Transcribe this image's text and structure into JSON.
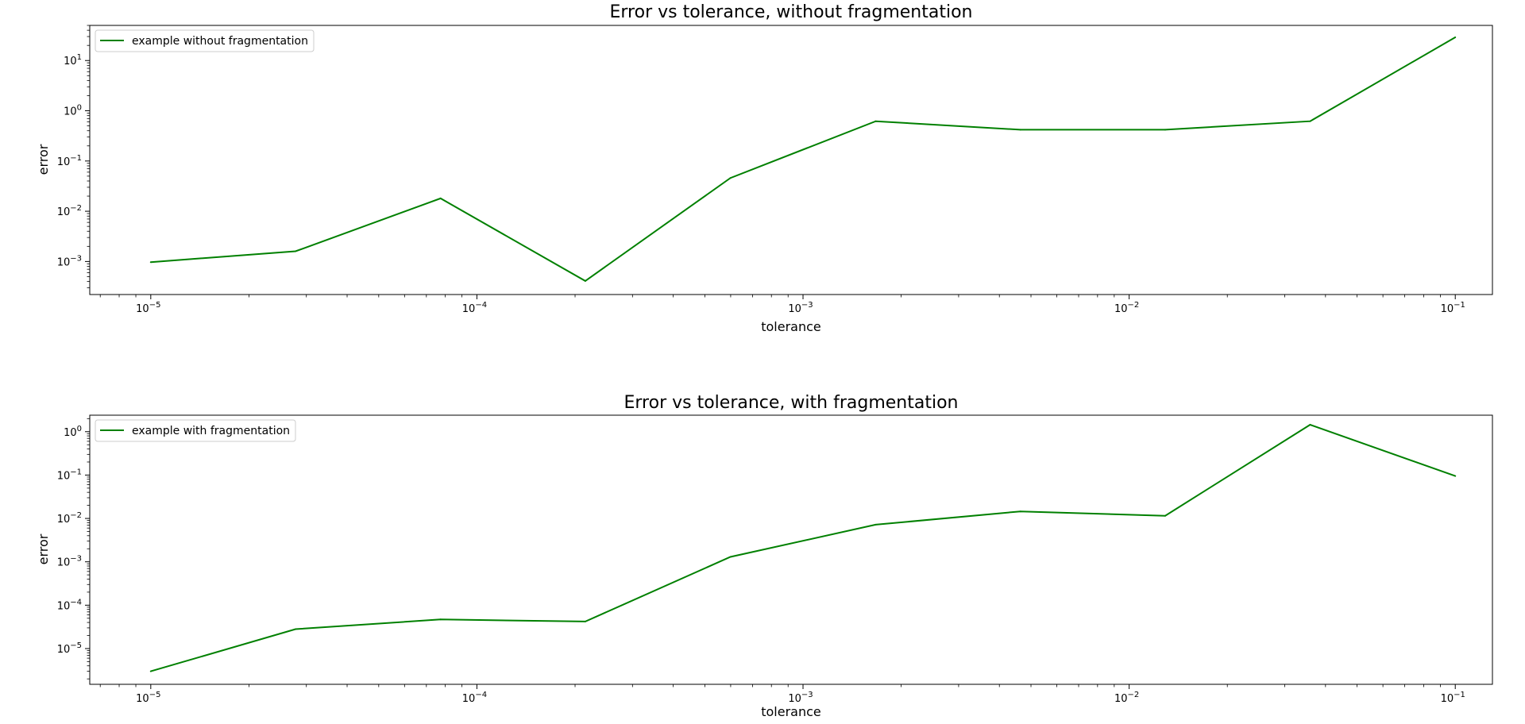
{
  "chart_data": [
    {
      "type": "line",
      "title": "Error vs tolerance, without fragmentation",
      "xlabel": "tolerance",
      "ylabel": "error",
      "xscale": "log",
      "yscale": "log",
      "xlim": [
        6.5e-06,
        0.13
      ],
      "ylim": [
        0.00022,
        50
      ],
      "x_ticks": [
        "10",
        "10",
        "10",
        "10",
        "10"
      ],
      "x_tick_exponents": [
        "−5",
        "−4",
        "−3",
        "−2",
        "−1"
      ],
      "y_ticks": [
        "10",
        "10",
        "10",
        "10",
        "10"
      ],
      "y_tick_exponents": [
        "−3",
        "−2",
        "−1",
        "0",
        "1"
      ],
      "legend_position": "upper-left",
      "grid": false,
      "series": [
        {
          "name": "example without fragmentation",
          "color": "#008000",
          "x": [
            1e-05,
            2.78e-05,
            7.74e-05,
            0.000215,
            0.000599,
            0.00167,
            0.00464,
            0.0129,
            0.0359,
            0.1
          ],
          "y": [
            0.00097,
            0.0016,
            0.018,
            0.00041,
            0.046,
            0.62,
            0.42,
            0.42,
            0.62,
            29
          ]
        }
      ]
    },
    {
      "type": "line",
      "title": "Error vs tolerance, with fragmentation",
      "xlabel": "tolerance",
      "ylabel": "error",
      "xscale": "log",
      "yscale": "log",
      "xlim": [
        6.5e-06,
        0.13
      ],
      "ylim": [
        1.5e-06,
        2.4
      ],
      "x_ticks": [
        "10",
        "10",
        "10",
        "10",
        "10"
      ],
      "x_tick_exponents": [
        "−5",
        "−4",
        "−3",
        "−2",
        "−1"
      ],
      "y_ticks": [
        "10",
        "10",
        "10",
        "10",
        "10",
        "10"
      ],
      "y_tick_exponents": [
        "−5",
        "−4",
        "−3",
        "−2",
        "−1",
        "0"
      ],
      "legend_position": "upper-left",
      "grid": false,
      "series": [
        {
          "name": "example with fragmentation",
          "color": "#008000",
          "x": [
            1e-05,
            2.78e-05,
            7.74e-05,
            0.000215,
            0.000599,
            0.00167,
            0.00464,
            0.0129,
            0.0359,
            0.1
          ],
          "y": [
            3e-06,
            2.8e-05,
            4.7e-05,
            4.2e-05,
            0.0013,
            0.0072,
            0.0145,
            0.0115,
            1.45,
            0.095
          ]
        }
      ]
    }
  ]
}
